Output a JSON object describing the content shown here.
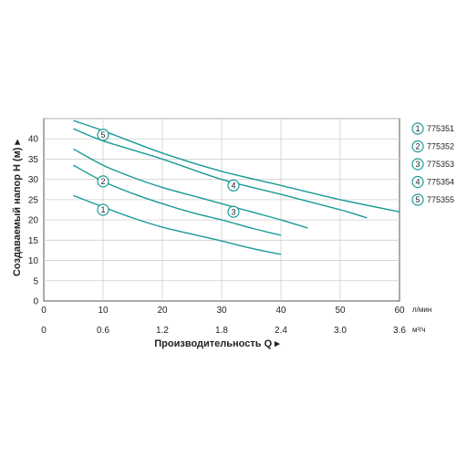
{
  "chart_data": {
    "type": "line",
    "ylabel": "Создаваемый напор H (м) ▸",
    "xlabel": "Производительность Q ▸",
    "ylim": [
      0,
      45
    ],
    "xlim": [
      0,
      60
    ],
    "y_ticks": [
      "0",
      "5",
      "10",
      "15",
      "20",
      "25",
      "30",
      "35",
      "40"
    ],
    "x_ticks_lpm": [
      "0",
      "10",
      "20",
      "30",
      "40",
      "50",
      "60"
    ],
    "x_ticks_m3h": [
      "0",
      "0.6",
      "1.2",
      "1.8",
      "2.4",
      "3.0",
      "3.6"
    ],
    "x_unit_lpm": "л/мин",
    "x_unit_m3h": "м³/ч",
    "grid": true,
    "legend_position": "right",
    "line_color": "#1a9a95",
    "series": [
      {
        "name": "775351",
        "marker": "1",
        "label_at": [
          10,
          22.5
        ],
        "x": [
          5,
          10,
          15,
          20,
          25,
          30,
          35,
          40
        ],
        "y": [
          26,
          23.2,
          20.5,
          18.2,
          16.5,
          14.8,
          13.0,
          11.5
        ]
      },
      {
        "name": "775352",
        "marker": "2",
        "label_at": [
          10,
          29.5
        ],
        "x": [
          5,
          10,
          15,
          20,
          25,
          30,
          35,
          40
        ],
        "y": [
          33.5,
          29.5,
          26.5,
          24.0,
          21.8,
          20.0,
          18.0,
          16.2
        ]
      },
      {
        "name": "775353",
        "marker": "3",
        "label_at": [
          32,
          22
        ],
        "x": [
          5,
          10,
          15,
          20,
          25,
          30,
          35,
          40,
          44.5
        ],
        "y": [
          37.5,
          33.5,
          30.5,
          28.0,
          26.0,
          24.0,
          22.0,
          20.0,
          18.0
        ]
      },
      {
        "name": "775354",
        "marker": "4",
        "label_at": [
          32,
          28.5
        ],
        "x": [
          5,
          10,
          20,
          30,
          40,
          50,
          54.5
        ],
        "y": [
          42.5,
          39.5,
          35.0,
          30.0,
          26.3,
          22.5,
          20.5
        ]
      },
      {
        "name": "775355",
        "marker": "5",
        "label_at": [
          10,
          41
        ],
        "x": [
          5,
          10,
          20,
          30,
          40,
          50,
          60
        ],
        "y": [
          44.5,
          42.0,
          36.5,
          32.0,
          28.5,
          25.0,
          22.0
        ]
      }
    ]
  }
}
